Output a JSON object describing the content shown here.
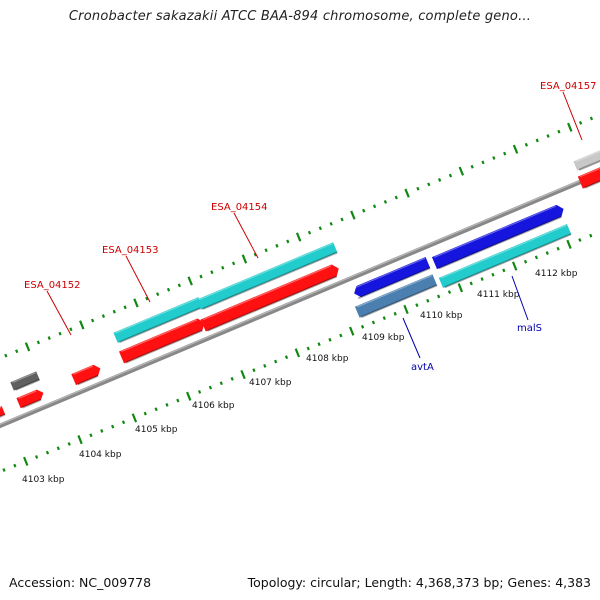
{
  "title": "Cronobacter sakazakii ATCC BAA-894 chromosome, complete geno...",
  "footer": {
    "accession": "Accession: NC_009778",
    "info": "Topology: circular; Length: 4,368,373 bp; Genes: 4,383"
  },
  "colors": {
    "backbone": "#888888",
    "tick": "#118811",
    "cds_red": "#ff1111",
    "cds_cyan": "#22cccc",
    "cds_blue": "#1515dd",
    "cds_steel": "#4a7fb0",
    "cds_dark_gray": "#606060",
    "cds_light_gray": "#c8c8c8",
    "label_red": "#cc0000",
    "label_blue": "#0000aa"
  },
  "kbp_labels": [
    "4103 kbp",
    "4104 kbp",
    "4105 kbp",
    "4106 kbp",
    "4107 kbp",
    "4108 kbp",
    "4109 kbp",
    "4110 kbp",
    "4111 kbp",
    "4112 kbp"
  ],
  "features": [
    {
      "name": "ESA_04152",
      "color": "red"
    },
    {
      "name": "ESA_04153",
      "color": "red"
    },
    {
      "name": "ESA_04154",
      "color": "red"
    },
    {
      "name": "ESA_04157",
      "color": "red"
    },
    {
      "name": "avtA",
      "color": "blue"
    },
    {
      "name": "malS",
      "color": "blue"
    }
  ]
}
